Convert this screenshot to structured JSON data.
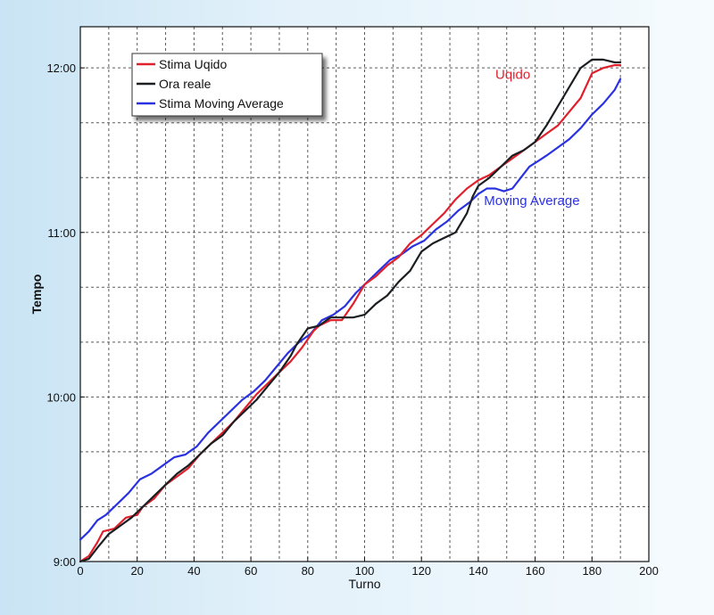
{
  "chart_data": {
    "type": "line",
    "title": "",
    "xlabel": "Turno",
    "ylabel": "Tempo",
    "xlim": [
      0,
      200
    ],
    "ylim": [
      540,
      735
    ],
    "x_ticks": [
      0,
      20,
      40,
      60,
      80,
      100,
      120,
      140,
      160,
      180,
      200
    ],
    "y_ticks": [
      {
        "value": 540,
        "label": "9:00"
      },
      {
        "value": 600,
        "label": "10:00"
      },
      {
        "value": 660,
        "label": "11:00"
      },
      {
        "value": 720,
        "label": "12:00"
      }
    ],
    "grid": true,
    "grid_style": "dashed",
    "legend_position": "top-left",
    "series": [
      {
        "name": "Stima Uqido",
        "color": "#e0202c",
        "x": [
          0,
          3,
          6,
          8,
          12,
          16,
          20,
          22,
          26,
          30,
          34,
          38,
          42,
          46,
          50,
          54,
          58,
          62,
          66,
          70,
          74,
          78,
          80,
          82,
          84,
          88,
          92,
          96,
          100,
          104,
          108,
          112,
          116,
          120,
          124,
          128,
          132,
          136,
          140,
          144,
          148,
          152,
          156,
          160,
          164,
          168,
          172,
          176,
          180,
          184,
          188,
          190
        ],
        "y": [
          540,
          542,
          547,
          551,
          552,
          556,
          557,
          560,
          563,
          568,
          571,
          574,
          579,
          583,
          587,
          591,
          596,
          601,
          605,
          609,
          613,
          618,
          621,
          624,
          626,
          628,
          628,
          634,
          641,
          644,
          648,
          651,
          656,
          659,
          663,
          667,
          672,
          676,
          679,
          681,
          684,
          687,
          690,
          693,
          696,
          699,
          704,
          709,
          718,
          720,
          721,
          721
        ]
      },
      {
        "name": "Ora reale",
        "color": "#1c1f22",
        "x": [
          0,
          3,
          6,
          10,
          14,
          18,
          22,
          26,
          30,
          34,
          38,
          42,
          46,
          50,
          54,
          58,
          62,
          66,
          70,
          74,
          76,
          78,
          80,
          84,
          88,
          92,
          96,
          100,
          104,
          108,
          112,
          116,
          120,
          124,
          128,
          132,
          136,
          138,
          140,
          144,
          148,
          152,
          156,
          160,
          164,
          168,
          172,
          176,
          180,
          184,
          188,
          190
        ],
        "y": [
          540,
          541,
          545,
          550,
          553,
          556,
          560,
          564,
          568,
          572,
          575,
          579,
          583,
          586,
          591,
          595,
          599,
          604,
          609,
          615,
          619,
          622,
          625,
          626,
          629,
          629,
          629,
          630,
          634,
          637,
          642,
          646,
          653,
          656,
          658,
          660,
          667,
          673,
          677,
          680,
          684,
          688,
          690,
          693,
          699,
          706,
          713,
          720,
          723,
          723,
          722,
          722
        ]
      },
      {
        "name": "Stima Moving Average",
        "color": "#2a32e0",
        "x": [
          0,
          3,
          6,
          9,
          13,
          17,
          21,
          25,
          29,
          33,
          37,
          41,
          45,
          49,
          53,
          57,
          61,
          65,
          69,
          73,
          77,
          81,
          85,
          89,
          93,
          97,
          101,
          105,
          109,
          113,
          117,
          121,
          125,
          129,
          133,
          137,
          140,
          143,
          146,
          149,
          152,
          155,
          158,
          161,
          164,
          168,
          172,
          176,
          180,
          184,
          188,
          190
        ],
        "y": [
          548,
          551,
          555,
          557,
          561,
          565,
          570,
          572,
          575,
          578,
          579,
          582,
          587,
          591,
          595,
          599,
          602,
          606,
          611,
          616,
          620,
          623,
          628,
          630,
          633,
          638,
          642,
          646,
          650,
          652,
          655,
          657,
          661,
          664,
          668,
          671,
          674,
          676,
          676,
          675,
          676,
          680,
          684,
          686,
          688,
          691,
          694,
          698,
          703,
          707,
          712,
          716
        ]
      }
    ],
    "annotations": [
      {
        "text": "Uqido",
        "x": 146,
        "y": 716,
        "color": "#e0202c"
      },
      {
        "text": "Moving Average",
        "x": 142,
        "y": 670,
        "color": "#2a32e0"
      }
    ]
  }
}
